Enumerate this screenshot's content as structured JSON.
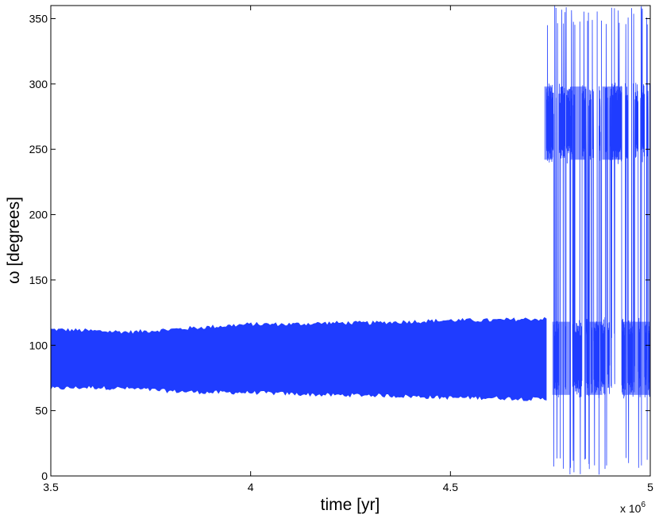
{
  "chart_data": {
    "type": "line",
    "title": "",
    "xlabel": "time [yr]",
    "ylabel": "ω [degrees]",
    "x_multiplier_label": "x 10",
    "x_multiplier_exponent": "6",
    "xlim": [
      3.5,
      5.0
    ],
    "ylim": [
      0,
      360
    ],
    "x_ticks": [
      3.5,
      4.0,
      4.5,
      5.0
    ],
    "x_tick_labels": [
      "3.5",
      "4",
      "4.5",
      "5"
    ],
    "y_ticks": [
      0,
      50,
      100,
      150,
      200,
      250,
      300,
      350
    ],
    "y_tick_labels": [
      "0",
      "50",
      "100",
      "150",
      "200",
      "250",
      "300",
      "350"
    ],
    "grid": false,
    "legend": "none",
    "color": "#1f3cff",
    "series": [
      {
        "x": [
          3.5,
          3.6,
          3.7,
          3.8,
          3.9,
          4.0,
          4.1,
          4.2,
          4.3,
          4.4,
          4.5,
          4.6,
          4.7,
          4.74
        ],
        "upper": [
          112,
          111,
          110,
          112,
          114,
          116,
          116,
          117,
          117,
          118,
          119,
          119,
          120,
          120
        ],
        "lower": [
          67,
          68,
          67,
          65,
          64,
          64,
          63,
          62,
          62,
          61,
          60,
          60,
          59,
          59
        ]
      }
    ],
    "transition_x": 4.74,
    "chaotic_bands": [
      {
        "center": 90,
        "min": 60,
        "max": 120
      },
      {
        "center": 270,
        "min": 240,
        "max": 300
      }
    ]
  }
}
